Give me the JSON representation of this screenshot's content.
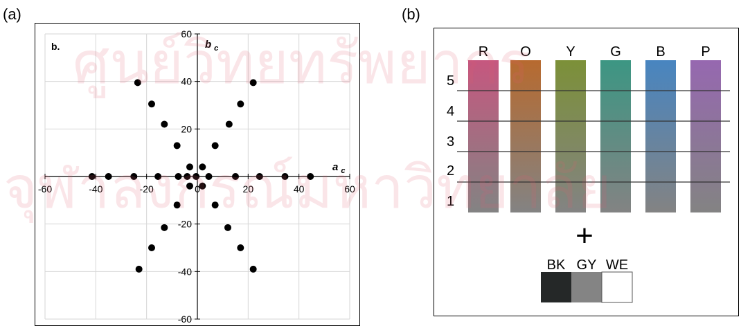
{
  "figure": {
    "panel_a_label": "(a)",
    "panel_b_label": "(b)"
  },
  "chart_data": [
    {
      "type": "scatter",
      "title": "",
      "inner_label": "b.",
      "xlabel_main": "a",
      "xlabel_sub": "c",
      "ylabel_main": "b",
      "ylabel_sub": "c",
      "xlim": [
        -60,
        60
      ],
      "ylim": [
        -60,
        60
      ],
      "xticks": [
        -60,
        -40,
        -20,
        0,
        20,
        40,
        60
      ],
      "yticks": [
        -60,
        -40,
        -20,
        20,
        40,
        60
      ],
      "grid": true,
      "point_color": "#000000",
      "points": [
        [
          -23.5,
          39.5
        ],
        [
          -18,
          30.5
        ],
        [
          -13,
          22
        ],
        [
          -8,
          13
        ],
        [
          -3,
          4
        ],
        [
          2,
          4
        ],
        [
          7,
          13
        ],
        [
          12.5,
          22
        ],
        [
          17,
          30.5
        ],
        [
          22,
          39.5
        ],
        [
          -41.5,
          0
        ],
        [
          -35,
          0
        ],
        [
          -25,
          0
        ],
        [
          -15.5,
          0
        ],
        [
          -7.5,
          0
        ],
        [
          -4,
          0
        ],
        [
          -0.5,
          0
        ],
        [
          4.5,
          0
        ],
        [
          15,
          0
        ],
        [
          24.5,
          0
        ],
        [
          34.5,
          0
        ],
        [
          44.5,
          0
        ],
        [
          -3,
          -4
        ],
        [
          2,
          -4
        ],
        [
          -8,
          -12
        ],
        [
          7,
          -12
        ],
        [
          -13,
          -21.5
        ],
        [
          12,
          -21.5
        ],
        [
          -18,
          -30
        ],
        [
          17,
          -30
        ],
        [
          -23,
          -39
        ],
        [
          22,
          -39
        ]
      ]
    },
    {
      "type": "table",
      "title": "",
      "columns": [
        "R",
        "O",
        "Y",
        "G",
        "B",
        "P"
      ],
      "rows": [
        "5",
        "4",
        "3",
        "2",
        "1"
      ],
      "top_colors": [
        "#c6577f",
        "#b76a2f",
        "#7c9038",
        "#3c9683",
        "#4885c0",
        "#9668b0"
      ],
      "bottom_color": "#838383",
      "plus_symbol": "+",
      "neutral_labels": [
        "BK",
        "GY",
        "WE"
      ],
      "neutral_colors": [
        "#252828",
        "#848484",
        "#ffffff"
      ]
    }
  ],
  "watermark": {
    "line1": "ศูนย์วิทยทรัพยากร",
    "line2": "จุฬาลงกรณ์มหาวิทยาลัย",
    "color": "#e06070"
  }
}
